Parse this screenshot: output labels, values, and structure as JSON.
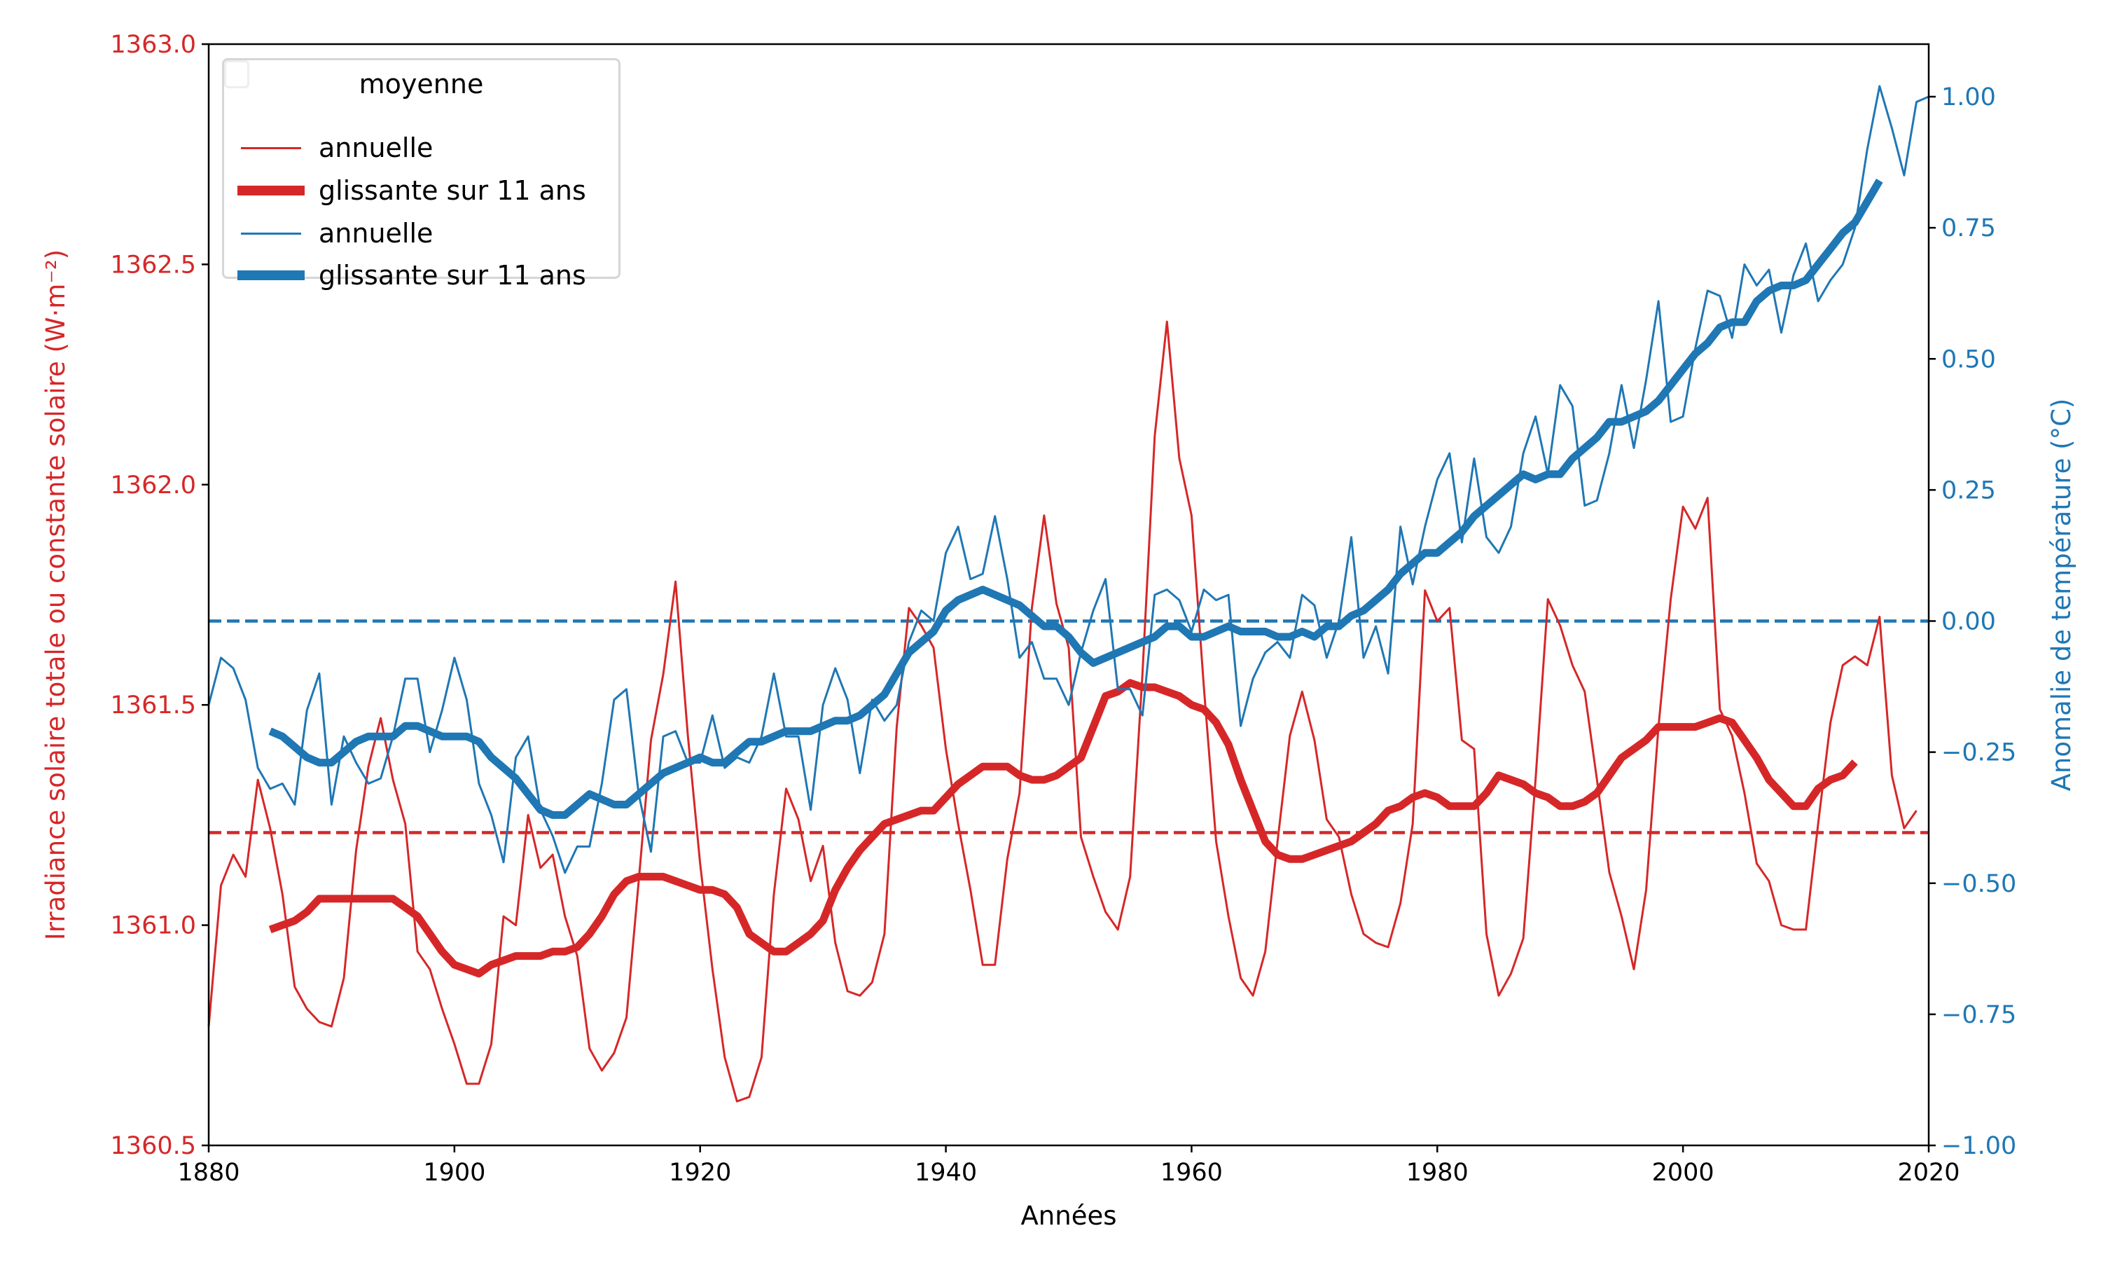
{
  "chart_data": {
    "type": "line",
    "xlabel": "Années",
    "ylabel_left": "Irradiance solaire totale ou constante solaire (W·m⁻²)",
    "ylabel_right": "Anomalie de température (°C)",
    "xlim": [
      1880,
      2020
    ],
    "ylim_left": [
      1360.5,
      1363.0
    ],
    "ylim_right": [
      -1.0,
      1.1
    ],
    "x_ticks": [
      "1880",
      "1900",
      "1920",
      "1940",
      "1960",
      "1980",
      "2000",
      "2020"
    ],
    "y_left_ticks": [
      "1360.5",
      "1361.0",
      "1361.5",
      "1362.0",
      "1362.5",
      "1363.0"
    ],
    "y_right_ticks": [
      "−1.00",
      "−0.75",
      "−0.50",
      "−0.25",
      "0.00",
      "0.25",
      "0.50",
      "0.75",
      "1.00"
    ],
    "grid": false,
    "legend": {
      "position": "top-left",
      "title": "moyenne",
      "entries": [
        "annuelle",
        "glissante sur 11 ans",
        "annuelle",
        "glissante sur 11 ans"
      ]
    },
    "colors": {
      "irradiance": "#d62728",
      "temperature": "#1f77b4"
    },
    "reference_lines": {
      "irradiance_mean": 1361.21,
      "temperature_zero": 0.0
    },
    "series": [
      {
        "name": "annuelle",
        "axis": "left",
        "color": "#d62728",
        "style": "thin",
        "x_start": 1880,
        "values": [
          1360.77,
          1361.09,
          1361.16,
          1361.11,
          1361.33,
          1361.22,
          1361.07,
          1360.86,
          1360.81,
          1360.78,
          1360.77,
          1360.88,
          1361.17,
          1361.36,
          1361.47,
          1361.33,
          1361.23,
          1360.94,
          1360.9,
          1360.81,
          1360.73,
          1360.64,
          1360.64,
          1360.73,
          1361.02,
          1361.0,
          1361.25,
          1361.13,
          1361.16,
          1361.02,
          1360.93,
          1360.72,
          1360.67,
          1360.71,
          1360.79,
          1361.1,
          1361.42,
          1361.57,
          1361.78,
          1361.43,
          1361.14,
          1360.9,
          1360.7,
          1360.6,
          1360.61,
          1360.7,
          1361.07,
          1361.31,
          1361.24,
          1361.1,
          1361.18,
          1360.96,
          1360.85,
          1360.84,
          1360.87,
          1360.98,
          1361.45,
          1361.72,
          1361.68,
          1361.63,
          1361.4,
          1361.23,
          1361.08,
          1360.91,
          1360.91,
          1361.15,
          1361.3,
          1361.72,
          1361.93,
          1361.73,
          1361.63,
          1361.2,
          1361.11,
          1361.03,
          1360.99,
          1361.11,
          1361.57,
          1362.11,
          1362.37,
          1362.06,
          1361.93,
          1361.54,
          1361.19,
          1361.02,
          1360.88,
          1360.84,
          1360.94,
          1361.19,
          1361.43,
          1361.53,
          1361.42,
          1361.24,
          1361.2,
          1361.07,
          1360.98,
          1360.96,
          1360.95,
          1361.05,
          1361.23,
          1361.76,
          1361.69,
          1361.72,
          1361.42,
          1361.4,
          1360.98,
          1360.84,
          1360.89,
          1360.97,
          1361.33,
          1361.74,
          1361.68,
          1361.59,
          1361.53,
          1361.33,
          1361.12,
          1361.02,
          1360.9,
          1361.08,
          1361.45,
          1361.74,
          1361.95,
          1361.9,
          1361.97,
          1361.49,
          1361.43,
          1361.3,
          1361.14,
          1361.1,
          1361.0,
          1360.99,
          1360.99,
          1361.23,
          1361.46,
          1361.59,
          1361.61,
          1361.59,
          1361.7,
          1361.34,
          1361.22,
          1361.26
        ]
      },
      {
        "name": "glissante sur 11 ans",
        "axis": "left",
        "color": "#d62728",
        "style": "thick",
        "x_start": 1885,
        "values": [
          1360.99,
          1361.0,
          1361.01,
          1361.03,
          1361.06,
          1361.06,
          1361.06,
          1361.06,
          1361.06,
          1361.06,
          1361.06,
          1361.04,
          1361.02,
          1360.98,
          1360.94,
          1360.91,
          1360.9,
          1360.89,
          1360.91,
          1360.92,
          1360.93,
          1360.93,
          1360.93,
          1360.94,
          1360.94,
          1360.95,
          1360.98,
          1361.02,
          1361.07,
          1361.1,
          1361.11,
          1361.11,
          1361.11,
          1361.1,
          1361.09,
          1361.08,
          1361.08,
          1361.07,
          1361.04,
          1360.98,
          1360.96,
          1360.94,
          1360.94,
          1360.96,
          1360.98,
          1361.01,
          1361.08,
          1361.13,
          1361.17,
          1361.2,
          1361.23,
          1361.24,
          1361.25,
          1361.26,
          1361.26,
          1361.29,
          1361.32,
          1361.34,
          1361.36,
          1361.36,
          1361.36,
          1361.34,
          1361.33,
          1361.33,
          1361.34,
          1361.36,
          1361.38,
          1361.45,
          1361.52,
          1361.53,
          1361.55,
          1361.54,
          1361.54,
          1361.53,
          1361.52,
          1361.5,
          1361.49,
          1361.46,
          1361.41,
          1361.33,
          1361.26,
          1361.19,
          1361.16,
          1361.15,
          1361.15,
          1361.16,
          1361.17,
          1361.18,
          1361.19,
          1361.21,
          1361.23,
          1361.26,
          1361.27,
          1361.29,
          1361.3,
          1361.29,
          1361.27,
          1361.27,
          1361.27,
          1361.3,
          1361.34,
          1361.33,
          1361.32,
          1361.3,
          1361.29,
          1361.27,
          1361.27,
          1361.28,
          1361.3,
          1361.34,
          1361.38,
          1361.4,
          1361.42,
          1361.45,
          1361.45,
          1361.45,
          1361.45,
          1361.46,
          1361.47,
          1361.46,
          1361.42,
          1361.38,
          1361.33,
          1361.3,
          1361.27,
          1361.27,
          1361.31,
          1361.33,
          1361.34,
          1361.37
        ]
      },
      {
        "name": "annuelle",
        "axis": "right",
        "color": "#1f77b4",
        "style": "thin",
        "x_start": 1880,
        "values": [
          -0.16,
          -0.07,
          -0.09,
          -0.15,
          -0.28,
          -0.32,
          -0.31,
          -0.35,
          -0.17,
          -0.1,
          -0.35,
          -0.22,
          -0.27,
          -0.31,
          -0.3,
          -0.22,
          -0.11,
          -0.11,
          -0.25,
          -0.17,
          -0.07,
          -0.15,
          -0.31,
          -0.37,
          -0.46,
          -0.26,
          -0.22,
          -0.36,
          -0.41,
          -0.48,
          -0.43,
          -0.43,
          -0.31,
          -0.15,
          -0.13,
          -0.33,
          -0.44,
          -0.22,
          -0.21,
          -0.27,
          -0.27,
          -0.18,
          -0.28,
          -0.26,
          -0.27,
          -0.22,
          -0.1,
          -0.22,
          -0.22,
          -0.36,
          -0.16,
          -0.09,
          -0.15,
          -0.29,
          -0.15,
          -0.19,
          -0.16,
          -0.04,
          0.02,
          0.0,
          0.13,
          0.18,
          0.08,
          0.09,
          0.2,
          0.08,
          -0.07,
          -0.04,
          -0.11,
          -0.11,
          -0.16,
          -0.06,
          0.02,
          0.08,
          -0.13,
          -0.13,
          -0.18,
          0.05,
          0.06,
          0.04,
          -0.02,
          0.06,
          0.04,
          0.05,
          -0.2,
          -0.11,
          -0.06,
          -0.04,
          -0.07,
          0.05,
          0.03,
          -0.07,
          0.0,
          0.16,
          -0.07,
          -0.01,
          -0.1,
          0.18,
          0.07,
          0.18,
          0.27,
          0.32,
          0.15,
          0.31,
          0.16,
          0.13,
          0.18,
          0.32,
          0.39,
          0.28,
          0.45,
          0.41,
          0.22,
          0.23,
          0.32,
          0.45,
          0.33,
          0.46,
          0.61,
          0.38,
          0.39,
          0.52,
          0.63,
          0.62,
          0.54,
          0.68,
          0.64,
          0.67,
          0.55,
          0.66,
          0.72,
          0.61,
          0.65,
          0.68,
          0.75,
          0.9,
          1.02,
          0.94,
          0.85,
          0.99,
          1.0
        ]
      },
      {
        "name": "glissante sur 11 ans",
        "axis": "right",
        "color": "#1f77b4",
        "style": "thick",
        "x_start": 1885,
        "values": [
          -0.21,
          -0.22,
          -0.24,
          -0.26,
          -0.27,
          -0.27,
          -0.25,
          -0.23,
          -0.22,
          -0.22,
          -0.22,
          -0.2,
          -0.2,
          -0.21,
          -0.22,
          -0.22,
          -0.22,
          -0.23,
          -0.26,
          -0.28,
          -0.3,
          -0.33,
          -0.36,
          -0.37,
          -0.37,
          -0.35,
          -0.33,
          -0.34,
          -0.35,
          -0.35,
          -0.33,
          -0.31,
          -0.29,
          -0.28,
          -0.27,
          -0.26,
          -0.27,
          -0.27,
          -0.25,
          -0.23,
          -0.23,
          -0.22,
          -0.21,
          -0.21,
          -0.21,
          -0.2,
          -0.19,
          -0.19,
          -0.18,
          -0.16,
          -0.14,
          -0.1,
          -0.06,
          -0.04,
          -0.02,
          0.02,
          0.04,
          0.05,
          0.06,
          0.05,
          0.04,
          0.03,
          0.01,
          -0.01,
          -0.01,
          -0.03,
          -0.06,
          -0.08,
          -0.07,
          -0.06,
          -0.05,
          -0.04,
          -0.03,
          -0.01,
          -0.01,
          -0.03,
          -0.03,
          -0.02,
          -0.01,
          -0.02,
          -0.02,
          -0.02,
          -0.03,
          -0.03,
          -0.02,
          -0.03,
          -0.01,
          -0.01,
          0.01,
          0.02,
          0.04,
          0.06,
          0.09,
          0.11,
          0.13,
          0.13,
          0.15,
          0.17,
          0.2,
          0.22,
          0.24,
          0.26,
          0.28,
          0.27,
          0.28,
          0.28,
          0.31,
          0.33,
          0.35,
          0.38,
          0.38,
          0.39,
          0.4,
          0.42,
          0.45,
          0.48,
          0.51,
          0.53,
          0.56,
          0.57,
          0.57,
          0.61,
          0.63,
          0.64,
          0.64,
          0.65,
          0.68,
          0.71,
          0.74,
          0.76,
          0.8,
          0.84
        ]
      }
    ]
  }
}
